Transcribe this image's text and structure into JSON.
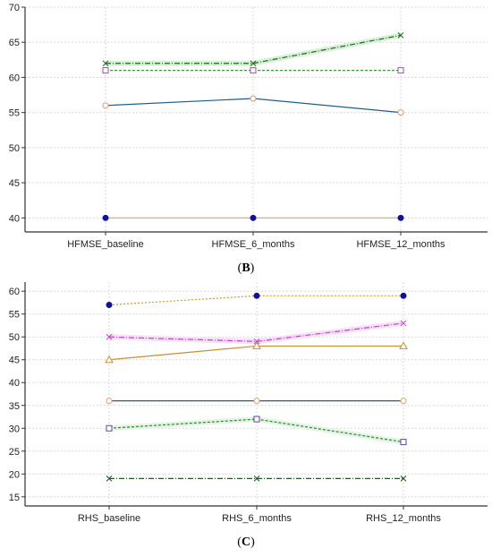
{
  "chart_data": [
    {
      "type": "line",
      "panel_label": "B",
      "categories": [
        "HFMSE_baseline",
        "HFMSE_6_months",
        "HFMSE_12_months"
      ],
      "ylim": [
        38,
        70
      ],
      "yticks": [
        40,
        45,
        50,
        55,
        60,
        65,
        70
      ],
      "grid": true,
      "series": [
        {
          "values": [
            62,
            62,
            66
          ],
          "color": "#1b6b1b",
          "dash": "6 2 1 2",
          "marker": "x",
          "band": "#d8f0d8"
        },
        {
          "values": [
            61,
            61,
            61
          ],
          "color": "#3a9a3a",
          "dash": "3 2",
          "marker": "square",
          "marker_color": "#b040c0"
        },
        {
          "values": [
            56,
            57,
            55
          ],
          "color": "#1f5f86",
          "dash": "",
          "marker": "circle-open",
          "marker_color": "#e8956a"
        },
        {
          "values": [
            40,
            40,
            40
          ],
          "color": "#e8a06a",
          "dash": "",
          "marker": "circle-filled",
          "marker_color": "#1010a0"
        }
      ]
    },
    {
      "type": "line",
      "panel_label": "C",
      "categories": [
        "RHS_baseline",
        "RHS_6_months",
        "RHS_12_months"
      ],
      "ylim": [
        13,
        62
      ],
      "yticks": [
        15,
        20,
        25,
        30,
        35,
        40,
        45,
        50,
        55,
        60
      ],
      "grid": true,
      "series": [
        {
          "values": [
            57,
            59,
            59
          ],
          "color": "#d49a20",
          "dash": "2 2",
          "marker": "circle-filled",
          "marker_color": "#1010a0"
        },
        {
          "values": [
            50,
            49,
            53
          ],
          "color": "#c040d0",
          "dash": "6 2 1 2",
          "marker": "x",
          "marker_color": "#c040d0",
          "band": "#f6e0f6"
        },
        {
          "values": [
            45,
            48,
            48
          ],
          "color": "#c89030",
          "dash": "",
          "marker": "triangle",
          "marker_color": "#c89030"
        },
        {
          "values": [
            36,
            36,
            36
          ],
          "color": "#3050a0",
          "dash": "",
          "marker": "circle-open",
          "marker_color": "#e8a06a"
        },
        {
          "values": [
            30,
            32,
            27
          ],
          "color": "#2a8a2a",
          "dash": "3 2",
          "marker": "square",
          "marker_color": "#6040b0",
          "band": "#e4f4e4"
        },
        {
          "values": [
            19,
            19,
            19
          ],
          "color": "#1b5b1b",
          "dash": "6 2 1 2",
          "marker": "x",
          "marker_color": "#1b5b1b"
        }
      ]
    }
  ]
}
